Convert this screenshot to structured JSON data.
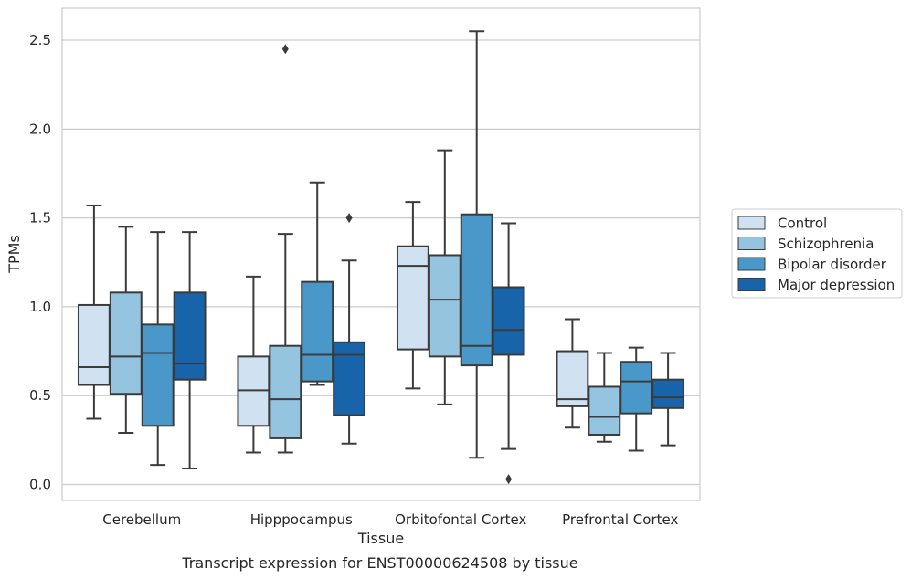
{
  "chart_data": {
    "type": "box",
    "title": "",
    "caption": "Transcript expression for ENST00000624508 by tissue",
    "xlabel": "Tissue",
    "ylabel": "TPMs",
    "ylim": [
      -0.09,
      2.68
    ],
    "yticks": [
      0.0,
      0.5,
      1.0,
      1.5,
      2.0,
      2.5
    ],
    "ytick_labels": [
      "0.0",
      "0.5",
      "1.0",
      "1.5",
      "2.0",
      "2.5"
    ],
    "grid": "horizontal",
    "legend_position": "right",
    "categories": [
      "Cerebellum",
      "Hipppocampus",
      "Orbitofontal Cortex",
      "Prefrontal Cortex"
    ],
    "series": [
      {
        "name": "Control",
        "color": "#d0e1f2",
        "boxes": [
          {
            "whisker_low": 0.37,
            "q1": 0.56,
            "median": 0.66,
            "q3": 1.01,
            "whisker_high": 1.57,
            "outliers": []
          },
          {
            "whisker_low": 0.18,
            "q1": 0.33,
            "median": 0.53,
            "q3": 0.72,
            "whisker_high": 1.17,
            "outliers": []
          },
          {
            "whisker_low": 0.54,
            "q1": 0.76,
            "median": 1.23,
            "q3": 1.34,
            "whisker_high": 1.59,
            "outliers": []
          },
          {
            "whisker_low": 0.32,
            "q1": 0.44,
            "median": 0.48,
            "q3": 0.75,
            "whisker_high": 0.93,
            "outliers": []
          }
        ]
      },
      {
        "name": "Schizophrenia",
        "color": "#94c4df",
        "boxes": [
          {
            "whisker_low": 0.29,
            "q1": 0.51,
            "median": 0.72,
            "q3": 1.08,
            "whisker_high": 1.45,
            "outliers": []
          },
          {
            "whisker_low": 0.18,
            "q1": 0.26,
            "median": 0.48,
            "q3": 0.78,
            "whisker_high": 1.41,
            "outliers": [
              2.45
            ]
          },
          {
            "whisker_low": 0.45,
            "q1": 0.72,
            "median": 1.04,
            "q3": 1.29,
            "whisker_high": 1.88,
            "outliers": []
          },
          {
            "whisker_low": 0.24,
            "q1": 0.28,
            "median": 0.38,
            "q3": 0.55,
            "whisker_high": 0.74,
            "outliers": []
          }
        ]
      },
      {
        "name": "Bipolar disorder",
        "color": "#4a98c9",
        "boxes": [
          {
            "whisker_low": 0.11,
            "q1": 0.33,
            "median": 0.74,
            "q3": 0.9,
            "whisker_high": 1.42,
            "outliers": []
          },
          {
            "whisker_low": 0.56,
            "q1": 0.58,
            "median": 0.73,
            "q3": 1.14,
            "whisker_high": 1.7,
            "outliers": []
          },
          {
            "whisker_low": 0.15,
            "q1": 0.67,
            "median": 0.78,
            "q3": 1.52,
            "whisker_high": 2.55,
            "outliers": []
          },
          {
            "whisker_low": 0.19,
            "q1": 0.4,
            "median": 0.58,
            "q3": 0.69,
            "whisker_high": 0.77,
            "outliers": []
          }
        ]
      },
      {
        "name": "Major depression",
        "color": "#1764ab",
        "boxes": [
          {
            "whisker_low": 0.09,
            "q1": 0.59,
            "median": 0.68,
            "q3": 1.08,
            "whisker_high": 1.42,
            "outliers": []
          },
          {
            "whisker_low": 0.23,
            "q1": 0.39,
            "median": 0.73,
            "q3": 0.8,
            "whisker_high": 1.26,
            "outliers": [
              1.5
            ]
          },
          {
            "whisker_low": 0.2,
            "q1": 0.73,
            "median": 0.87,
            "q3": 1.11,
            "whisker_high": 1.47,
            "outliers": [
              0.03
            ]
          },
          {
            "whisker_low": 0.22,
            "q1": 0.43,
            "median": 0.49,
            "q3": 0.59,
            "whisker_high": 0.74,
            "outliers": []
          }
        ]
      }
    ]
  }
}
